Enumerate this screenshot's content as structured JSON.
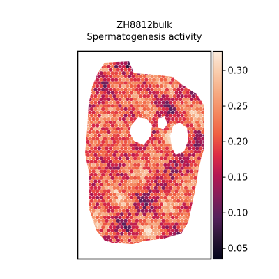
{
  "chart_data": {
    "type": "heatmap",
    "title_lines": [
      "ZH8812bulk",
      "Spermatogenesis activity"
    ],
    "grid": false,
    "axes_ticks_visible": false,
    "colorbar": {
      "position": "right",
      "colormap": "rocket",
      "range": [
        0.035,
        0.327
      ],
      "ticks": [
        0.05,
        0.1,
        0.15,
        0.2,
        0.25,
        0.3
      ],
      "tick_labels": [
        "0.05",
        "0.10",
        "0.15",
        "0.20",
        "0.25",
        "0.30"
      ],
      "stops": [
        "#03051a",
        "#2a1636",
        "#55215b",
        "#841e5a",
        "#b31753",
        "#dd2c45",
        "#f06043",
        "#f4875e",
        "#f6aa82",
        "#f9ccac",
        "#faebdd"
      ]
    },
    "spot_summary": {
      "approx_min": 0.04,
      "approx_max": 0.32,
      "typical_range": [
        0.15,
        0.25
      ]
    }
  }
}
